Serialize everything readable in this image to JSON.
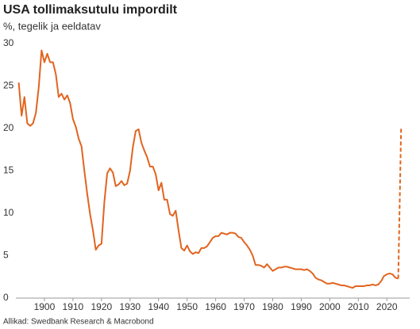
{
  "chart_data": {
    "type": "line",
    "title": "USA tollimaksutulu impordilt",
    "subtitle": "%, tegelik ja eeldatav",
    "source": "Allikad: Swedbank Research & Macrobond",
    "xlim": [
      1890,
      2028
    ],
    "xticks": [
      1900,
      1910,
      1920,
      1930,
      1940,
      1950,
      1960,
      1970,
      1980,
      1990,
      2000,
      2010,
      2020
    ],
    "ylim": [
      0,
      30
    ],
    "yticks": [
      0,
      5,
      10,
      15,
      20,
      25,
      30
    ],
    "grid": false,
    "series": [
      {
        "color": "#e2641f",
        "dashed": false,
        "x": [
          1891,
          1892,
          1893,
          1894,
          1895,
          1896,
          1897,
          1898,
          1899,
          1900,
          1901,
          1902,
          1903,
          1904,
          1905,
          1906,
          1907,
          1908,
          1909,
          1910,
          1911,
          1912,
          1913,
          1914,
          1915,
          1916,
          1917,
          1918,
          1919,
          1920,
          1921,
          1922,
          1923,
          1924,
          1925,
          1926,
          1927,
          1928,
          1929,
          1930,
          1931,
          1932,
          1933,
          1934,
          1935,
          1936,
          1937,
          1938,
          1939,
          1940,
          1941,
          1942,
          1943,
          1944,
          1945,
          1946,
          1947,
          1948,
          1949,
          1950,
          1951,
          1952,
          1953,
          1954,
          1955,
          1956,
          1957,
          1958,
          1959,
          1960,
          1961,
          1962,
          1963,
          1964,
          1965,
          1966,
          1967,
          1968,
          1969,
          1970,
          1971,
          1972,
          1973,
          1974,
          1975,
          1976,
          1977,
          1978,
          1979,
          1980,
          1981,
          1982,
          1983,
          1984,
          1985,
          1986,
          1987,
          1988,
          1989,
          1990,
          1991,
          1992,
          1993,
          1994,
          1995,
          1996,
          1997,
          1998,
          1999,
          2000,
          2001,
          2002,
          2003,
          2004,
          2005,
          2006,
          2007,
          2008,
          2009,
          2010,
          2011,
          2012,
          2013,
          2014,
          2015,
          2016,
          2017,
          2018,
          2019,
          2020,
          2021,
          2022,
          2023,
          2024
        ],
        "values": [
          25.4,
          21.5,
          23.7,
          20.6,
          20.3,
          20.6,
          21.8,
          24.8,
          29.2,
          27.8,
          28.8,
          27.8,
          27.8,
          26.4,
          23.7,
          24.1,
          23.4,
          23.9,
          23.0,
          21.1,
          20.2,
          18.8,
          17.9,
          15.0,
          12.3,
          9.9,
          8.0,
          5.7,
          6.2,
          6.4,
          11.3,
          14.7,
          15.3,
          14.8,
          13.2,
          13.4,
          13.8,
          13.3,
          13.5,
          15.0,
          17.8,
          19.7,
          19.9,
          18.3,
          17.4,
          16.6,
          15.5,
          15.5,
          14.6,
          12.7,
          13.6,
          11.6,
          11.6,
          9.9,
          9.7,
          10.3,
          8.0,
          5.9,
          5.6,
          6.2,
          5.5,
          5.2,
          5.4,
          5.3,
          5.9,
          5.9,
          6.1,
          6.6,
          7.1,
          7.3,
          7.3,
          7.7,
          7.6,
          7.5,
          7.7,
          7.7,
          7.6,
          7.2,
          7.1,
          6.6,
          6.2,
          5.7,
          5.0,
          3.9,
          3.9,
          3.8,
          3.6,
          4.0,
          3.6,
          3.2,
          3.4,
          3.6,
          3.6,
          3.7,
          3.7,
          3.6,
          3.5,
          3.4,
          3.4,
          3.4,
          3.3,
          3.4,
          3.2,
          2.9,
          2.4,
          2.2,
          2.1,
          1.9,
          1.7,
          1.7,
          1.8,
          1.7,
          1.6,
          1.5,
          1.5,
          1.4,
          1.3,
          1.2,
          1.4,
          1.4,
          1.4,
          1.4,
          1.5,
          1.5,
          1.6,
          1.5,
          1.6,
          2.0,
          2.6,
          2.8,
          2.9,
          2.8,
          2.4,
          2.3
        ]
      },
      {
        "color": "#e2641f",
        "dashed": true,
        "x": [
          2024,
          2025
        ],
        "values": [
          2.3,
          20
        ]
      }
    ]
  }
}
